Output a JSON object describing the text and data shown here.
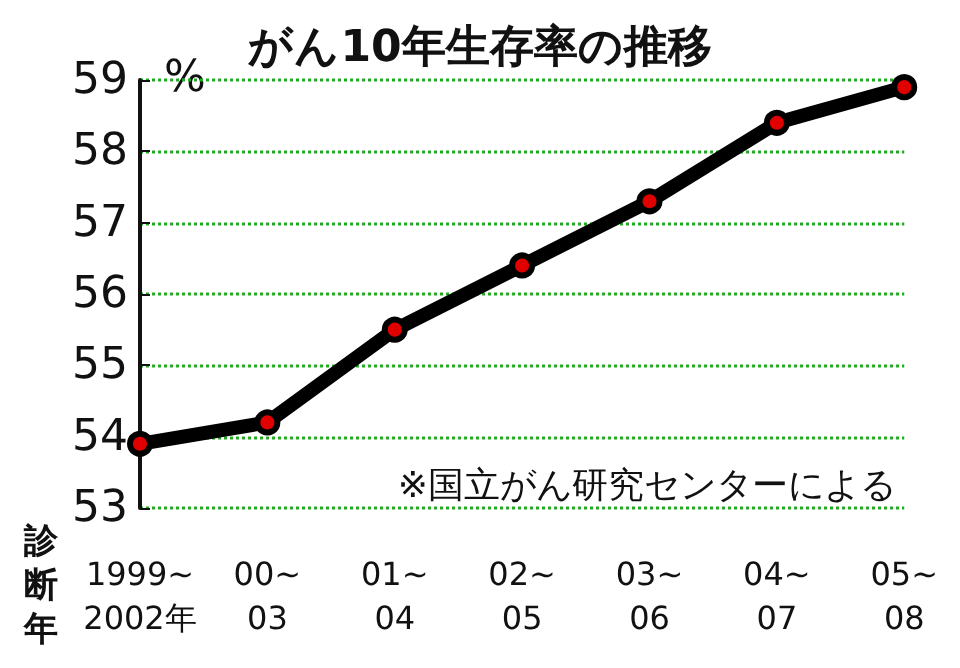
{
  "chart_data": {
    "type": "line",
    "title": "がん10年生存率の推移",
    "ylabel": "%",
    "xlabel": "診断年",
    "categories": [
      "1999~\n2002年",
      "00~\n03",
      "01~\n04",
      "02~\n05",
      "03~\n06",
      "04~\n07",
      "05~\n08"
    ],
    "series": [
      {
        "color": "#000000",
        "values": [
          53.9,
          54.2,
          55.5,
          56.4,
          57.3,
          58.4,
          58.9
        ]
      }
    ],
    "ylim": [
      53,
      59
    ],
    "yticks": [
      53,
      54,
      55,
      56,
      57,
      58,
      59
    ],
    "grid": "y",
    "marker": "circle",
    "line_style": "solid",
    "annotations": [
      "※国立がん研究センターによる"
    ]
  }
}
